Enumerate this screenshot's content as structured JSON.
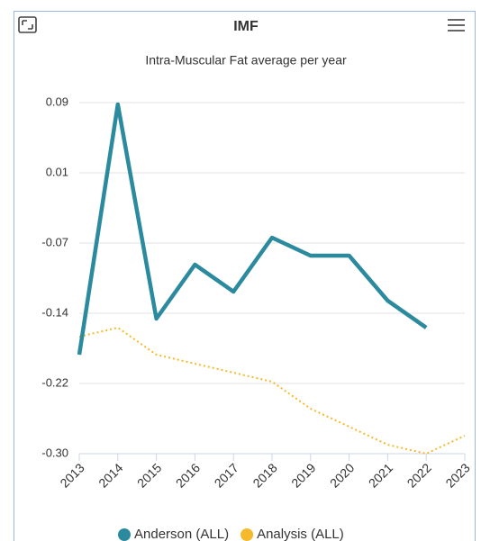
{
  "chart_data": {
    "type": "line",
    "title": "IMF",
    "subtitle": "Intra-Muscular Fat average per year",
    "x": [
      2013,
      2014,
      2015,
      2016,
      2017,
      2018,
      2019,
      2020,
      2021,
      2022,
      2023
    ],
    "xlim": [
      2013,
      2023
    ],
    "xticks": [
      2013,
      2014,
      2015,
      2016,
      2017,
      2018,
      2019,
      2020,
      2021,
      2022,
      2023
    ],
    "ylim": [
      -0.3,
      0.09
    ],
    "yticks": [
      {
        "value": 0.09,
        "label": "0.09"
      },
      {
        "value": 0.012,
        "label": "0.01"
      },
      {
        "value": -0.066,
        "label": "-0.07"
      },
      {
        "value": -0.144,
        "label": "-0.14"
      },
      {
        "value": -0.222,
        "label": "-0.22"
      },
      {
        "value": -0.3,
        "label": "-0.30"
      }
    ],
    "grid": true,
    "legend": "bottom",
    "series": [
      {
        "name": "Anderson (ALL)",
        "color": "#2b8a9e",
        "style": "solid",
        "values": [
          -0.19,
          0.088,
          -0.15,
          -0.09,
          -0.12,
          -0.06,
          -0.08,
          -0.08,
          -0.13,
          -0.16,
          null
        ]
      },
      {
        "name": "Analysis (ALL)",
        "color": "#f6b92b",
        "style": "dotted",
        "values": [
          -0.17,
          -0.16,
          -0.19,
          -0.2,
          -0.21,
          -0.22,
          -0.25,
          -0.27,
          -0.29,
          -0.3,
          -0.28
        ]
      }
    ]
  }
}
